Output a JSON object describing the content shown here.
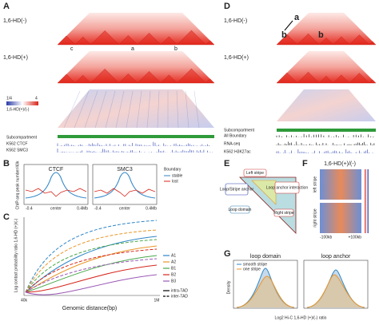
{
  "panels": {
    "A": {
      "label": "A",
      "top": "1,6-HD(-)",
      "bottom": "1,6-HD(+)",
      "marks": [
        "c",
        "a",
        "b"
      ],
      "scale": [
        "1/4",
        "4"
      ],
      "ratio": "1,6-HD(+)/(-)",
      "tracks": [
        "Subcompartment",
        "K562 CTCF",
        "K562 SMC3"
      ]
    },
    "D": {
      "label": "D",
      "top": "1,6-HD(-)",
      "bottom": "1,6-HD(+)",
      "marks": [
        "a",
        "b",
        "b"
      ],
      "tracks": [
        "Subcompartment",
        "All Boundary",
        "RNA-seq",
        "K562 H3K27ac"
      ]
    },
    "B": {
      "label": "B",
      "ylabel": "ChIP-seq peak number/40k",
      "plots": [
        "CTCF",
        "SMC3"
      ],
      "xticks": [
        "-0.4",
        "center",
        "0.4Mb"
      ],
      "legend_title": "Boundary",
      "legend": [
        "stable",
        "lost"
      ]
    },
    "C": {
      "label": "C",
      "ylabel": "Log contact probability ratio 1,6-HD (+)/(-)",
      "xlabel": "Genomic distance(bp)",
      "xticks": [
        "40k",
        "1M"
      ],
      "legend": [
        "A1",
        "A2",
        "B1",
        "B2",
        "B3"
      ],
      "styles": [
        "intra-TAD",
        "inter-TAD"
      ]
    },
    "E": {
      "label": "E",
      "parts": [
        "Left stripe",
        "Loop/Stripe anchor",
        "Loop anchor interaction",
        "Loop domain",
        "Right stripe"
      ]
    },
    "F": {
      "label": "F",
      "title": "1,6-HD(+)/(-)",
      "rows": [
        "left stripe",
        "right stripe"
      ],
      "xticks": [
        "-100kb",
        "+100kb"
      ]
    },
    "G": {
      "label": "G",
      "plots": [
        "loop domain",
        "loop anchor"
      ],
      "legend": [
        "smooth stripe",
        "one stripe"
      ],
      "ylabel": "Density",
      "xlabel": "Log2 Hi-C 1,6-HD (+)/(-) ratio"
    }
  }
}
